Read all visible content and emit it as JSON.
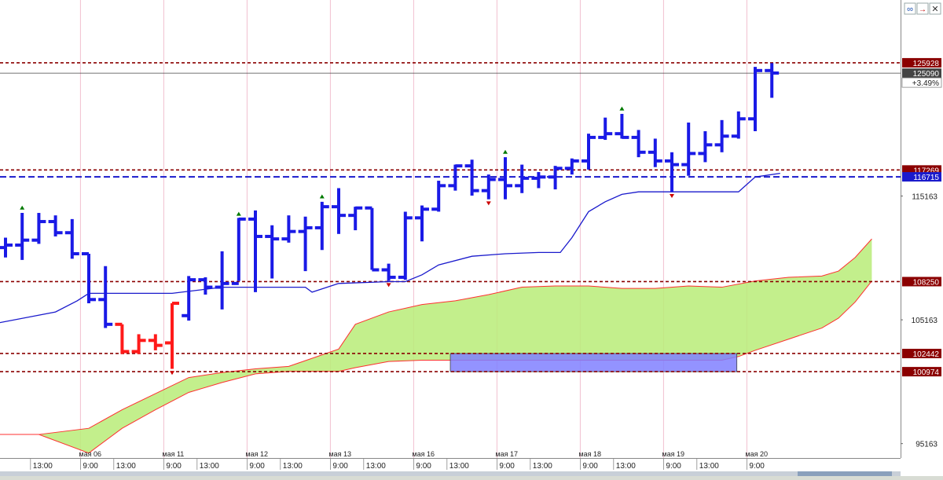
{
  "window": {
    "toolbar_icons": [
      "link-icon",
      "close-arrow-icon",
      "close-icon"
    ]
  },
  "chart_data": {
    "type": "line",
    "subtype": "ohlc-bars",
    "title": "",
    "xlabel": "",
    "ylabel": "",
    "ylim": [
      94000,
      131000
    ],
    "y_tick_labels": [
      {
        "value": 115163,
        "label": "115163"
      },
      {
        "value": 105163,
        "label": "105163"
      },
      {
        "value": 95163,
        "label": "95163"
      }
    ],
    "x_date_labels": [
      {
        "bar": 5,
        "label": "мая 06"
      },
      {
        "bar": 10,
        "label": "мая 11"
      },
      {
        "bar": 15,
        "label": "мая 12"
      },
      {
        "bar": 20,
        "label": "мая 13"
      },
      {
        "bar": 25,
        "label": "мая 16"
      },
      {
        "bar": 30,
        "label": "мая 17"
      },
      {
        "bar": 35,
        "label": "мая 18"
      },
      {
        "bar": 40,
        "label": "мая 19"
      },
      {
        "bar": 45,
        "label": "мая 20"
      }
    ],
    "x_time_labels": [
      {
        "bar": 2,
        "label": "13:00"
      },
      {
        "bar": 5,
        "label": "9:00"
      },
      {
        "bar": 7,
        "label": "13:00"
      },
      {
        "bar": 10,
        "label": "9:00"
      },
      {
        "bar": 12,
        "label": "13:00"
      },
      {
        "bar": 15,
        "label": "9:00"
      },
      {
        "bar": 17,
        "label": "13:00"
      },
      {
        "bar": 20,
        "label": "9:00"
      },
      {
        "bar": 22,
        "label": "13:00"
      },
      {
        "bar": 25,
        "label": "9:00"
      },
      {
        "bar": 27,
        "label": "13:00"
      },
      {
        "bar": 30,
        "label": "9:00"
      },
      {
        "bar": 32,
        "label": "13:00"
      },
      {
        "bar": 35,
        "label": "9:00"
      },
      {
        "bar": 37,
        "label": "13:00"
      },
      {
        "bar": 40,
        "label": "9:00"
      },
      {
        "bar": 42,
        "label": "13:00"
      },
      {
        "bar": 45,
        "label": "9:00"
      }
    ],
    "horizontal_levels": [
      {
        "value": 125928,
        "label": "125928",
        "color": "#8b0000",
        "style": "dashed"
      },
      {
        "value": 117269,
        "label": "117269",
        "color": "#8b0000",
        "style": "dashed"
      },
      {
        "value": 116715,
        "label": "116715",
        "color": "#1a1acc",
        "style": "dashed"
      },
      {
        "value": 108250,
        "label": "108250",
        "color": "#8b0000",
        "style": "dashed"
      },
      {
        "value": 102442,
        "label": "102442",
        "color": "#8b0000",
        "style": "dashed"
      },
      {
        "value": 100974,
        "label": "100974",
        "color": "#8b0000",
        "style": "dashed"
      }
    ],
    "last_price": {
      "value": 125090,
      "label": "125090",
      "change": "+3.49%"
    },
    "bar_colors": {
      "up": "#1a1ae6",
      "down": "#ff1a1a"
    },
    "bars": [
      {
        "x": 0,
        "o": 111000,
        "h": 111800,
        "l": 110200,
        "c": 111200,
        "color": "up"
      },
      {
        "x": 1,
        "o": 111200,
        "h": 113800,
        "l": 110000,
        "c": 111600,
        "color": "up"
      },
      {
        "x": 2,
        "o": 111600,
        "h": 113800,
        "l": 111300,
        "c": 113100,
        "color": "up"
      },
      {
        "x": 3,
        "o": 113100,
        "h": 113600,
        "l": 111900,
        "c": 112200,
        "color": "up"
      },
      {
        "x": 4,
        "o": 112200,
        "h": 113300,
        "l": 110100,
        "c": 110500,
        "color": "up"
      },
      {
        "x": 5,
        "o": 110500,
        "h": 110500,
        "l": 106500,
        "c": 106800,
        "color": "up"
      },
      {
        "x": 6,
        "o": 106800,
        "h": 109500,
        "l": 104500,
        "c": 104800,
        "color": "up"
      },
      {
        "x": 7,
        "o": 104800,
        "h": 104800,
        "l": 102400,
        "c": 102600,
        "color": "down"
      },
      {
        "x": 8,
        "o": 102600,
        "h": 104000,
        "l": 102400,
        "c": 103500,
        "color": "down"
      },
      {
        "x": 9,
        "o": 103500,
        "h": 104000,
        "l": 102700,
        "c": 103100,
        "color": "down"
      },
      {
        "x": 10,
        "o": 103300,
        "h": 106500,
        "l": 101200,
        "c": 106500,
        "color": "down"
      },
      {
        "x": 11,
        "o": 105500,
        "h": 108700,
        "l": 105100,
        "c": 108400,
        "color": "up"
      },
      {
        "x": 12,
        "o": 108400,
        "h": 108600,
        "l": 107200,
        "c": 107800,
        "color": "up"
      },
      {
        "x": 13,
        "o": 107800,
        "h": 110700,
        "l": 106000,
        "c": 108100,
        "color": "up"
      },
      {
        "x": 14,
        "o": 108100,
        "h": 113400,
        "l": 108300,
        "c": 113300,
        "color": "up"
      },
      {
        "x": 15,
        "o": 113300,
        "h": 114000,
        "l": 107400,
        "c": 111900,
        "color": "up"
      },
      {
        "x": 16,
        "o": 111900,
        "h": 112800,
        "l": 108500,
        "c": 111700,
        "color": "up"
      },
      {
        "x": 17,
        "o": 111700,
        "h": 113600,
        "l": 111400,
        "c": 112300,
        "color": "up"
      },
      {
        "x": 18,
        "o": 112300,
        "h": 113500,
        "l": 109100,
        "c": 112600,
        "color": "up"
      },
      {
        "x": 19,
        "o": 112600,
        "h": 114700,
        "l": 110800,
        "c": 114300,
        "color": "up"
      },
      {
        "x": 20,
        "o": 114300,
        "h": 115800,
        "l": 112100,
        "c": 113600,
        "color": "up"
      },
      {
        "x": 21,
        "o": 113600,
        "h": 114300,
        "l": 112400,
        "c": 114200,
        "color": "up"
      },
      {
        "x": 22,
        "o": 114200,
        "h": 114200,
        "l": 109200,
        "c": 109200,
        "color": "up"
      },
      {
        "x": 23,
        "o": 109200,
        "h": 109700,
        "l": 108300,
        "c": 108600,
        "color": "up"
      },
      {
        "x": 24,
        "o": 108600,
        "h": 113900,
        "l": 108400,
        "c": 113400,
        "color": "up"
      },
      {
        "x": 25,
        "o": 113400,
        "h": 114400,
        "l": 111500,
        "c": 114100,
        "color": "up"
      },
      {
        "x": 26,
        "o": 114100,
        "h": 116400,
        "l": 113900,
        "c": 116000,
        "color": "up"
      },
      {
        "x": 27,
        "o": 116000,
        "h": 117700,
        "l": 115600,
        "c": 117600,
        "color": "up"
      },
      {
        "x": 28,
        "o": 117600,
        "h": 118100,
        "l": 115200,
        "c": 115600,
        "color": "up"
      },
      {
        "x": 29,
        "o": 115600,
        "h": 116900,
        "l": 114900,
        "c": 116500,
        "color": "up"
      },
      {
        "x": 30,
        "o": 116500,
        "h": 118300,
        "l": 114900,
        "c": 116000,
        "color": "up"
      },
      {
        "x": 31,
        "o": 116000,
        "h": 117700,
        "l": 115400,
        "c": 116600,
        "color": "up"
      },
      {
        "x": 32,
        "o": 116600,
        "h": 117100,
        "l": 115800,
        "c": 116700,
        "color": "up"
      },
      {
        "x": 33,
        "o": 116700,
        "h": 117600,
        "l": 115700,
        "c": 117400,
        "color": "up"
      },
      {
        "x": 34,
        "o": 117400,
        "h": 118200,
        "l": 116900,
        "c": 118000,
        "color": "up"
      },
      {
        "x": 35,
        "o": 118000,
        "h": 120200,
        "l": 117300,
        "c": 119900,
        "color": "up"
      },
      {
        "x": 36,
        "o": 119900,
        "h": 121500,
        "l": 119700,
        "c": 120200,
        "color": "up"
      },
      {
        "x": 37,
        "o": 120200,
        "h": 121800,
        "l": 119800,
        "c": 119900,
        "color": "up"
      },
      {
        "x": 38,
        "o": 119900,
        "h": 120500,
        "l": 118300,
        "c": 118700,
        "color": "up"
      },
      {
        "x": 39,
        "o": 118700,
        "h": 119800,
        "l": 117500,
        "c": 118000,
        "color": "up"
      },
      {
        "x": 40,
        "o": 118000,
        "h": 118700,
        "l": 115500,
        "c": 117700,
        "color": "up"
      },
      {
        "x": 41,
        "o": 117700,
        "h": 121100,
        "l": 116800,
        "c": 118600,
        "color": "up"
      },
      {
        "x": 42,
        "o": 118600,
        "h": 120400,
        "l": 117900,
        "c": 119300,
        "color": "up"
      },
      {
        "x": 43,
        "o": 119300,
        "h": 121300,
        "l": 118700,
        "c": 120000,
        "color": "up"
      },
      {
        "x": 44,
        "o": 120000,
        "h": 122000,
        "l": 119800,
        "c": 121400,
        "color": "up"
      },
      {
        "x": 45,
        "o": 121400,
        "h": 125600,
        "l": 120400,
        "c": 125300,
        "color": "up"
      },
      {
        "x": 46,
        "o": 125300,
        "h": 125900,
        "l": 123100,
        "c": 125100,
        "color": "up"
      }
    ],
    "fractal_markers": [
      {
        "x": 1,
        "value": 114200,
        "dir": "up",
        "color": "#007a00"
      },
      {
        "x": 10,
        "value": 100900,
        "dir": "down",
        "color": "#cc0000"
      },
      {
        "x": 14,
        "value": 113700,
        "dir": "up",
        "color": "#007a00"
      },
      {
        "x": 19,
        "value": 115100,
        "dir": "up",
        "color": "#007a00"
      },
      {
        "x": 23,
        "value": 108000,
        "dir": "down",
        "color": "#cc0000"
      },
      {
        "x": 29,
        "value": 114600,
        "dir": "down",
        "color": "#cc0000"
      },
      {
        "x": 30,
        "value": 118700,
        "dir": "up",
        "color": "#007a00"
      },
      {
        "x": 37,
        "value": 122200,
        "dir": "up",
        "color": "#007a00"
      },
      {
        "x": 40,
        "value": 115200,
        "dir": "down",
        "color": "#cc0000"
      }
    ],
    "series": [
      {
        "color": "#1a1acc",
        "points": [
          [
            -0.5,
            104900
          ],
          [
            3,
            105800
          ],
          [
            4.3,
            106700
          ],
          [
            5,
            107300
          ],
          [
            8,
            107300
          ],
          [
            10,
            107300
          ],
          [
            13,
            107800
          ],
          [
            18,
            107800
          ],
          [
            18.4,
            107400
          ],
          [
            20,
            108100
          ],
          [
            23,
            108250
          ],
          [
            24,
            108250
          ],
          [
            25,
            108800
          ],
          [
            26,
            109600
          ],
          [
            28,
            110300
          ],
          [
            30,
            110500
          ],
          [
            32,
            110600
          ],
          [
            33.3,
            110600
          ],
          [
            34,
            111800
          ],
          [
            35,
            113900
          ],
          [
            36,
            114700
          ],
          [
            37,
            115300
          ],
          [
            38,
            115500
          ],
          [
            40,
            115500
          ],
          [
            42,
            115500
          ],
          [
            43,
            115500
          ],
          [
            44,
            115500
          ],
          [
            45,
            116700
          ],
          [
            46.5,
            117000
          ]
        ]
      }
    ],
    "cloud": {
      "fill": "#b8ec78",
      "edge_color": "#ff3030",
      "upper": [
        [
          -0.5,
          95900
        ],
        [
          2,
          95900
        ],
        [
          5,
          96400
        ],
        [
          7,
          97900
        ],
        [
          9,
          99200
        ],
        [
          11,
          100500
        ],
        [
          13,
          100900
        ],
        [
          15,
          101200
        ],
        [
          17,
          101400
        ],
        [
          20,
          102800
        ],
        [
          21,
          104800
        ],
        [
          23,
          105800
        ],
        [
          25,
          106400
        ],
        [
          27,
          106700
        ],
        [
          29,
          107200
        ],
        [
          31,
          107800
        ],
        [
          33,
          107900
        ],
        [
          35,
          107900
        ],
        [
          37,
          107700
        ],
        [
          39,
          107700
        ],
        [
          41,
          107900
        ],
        [
          43,
          107800
        ],
        [
          45,
          108300
        ],
        [
          47,
          108600
        ],
        [
          49,
          108700
        ],
        [
          50,
          109100
        ],
        [
          51,
          110200
        ],
        [
          52,
          111700
        ]
      ],
      "lower": [
        [
          -0.5,
          95900
        ],
        [
          2,
          95900
        ],
        [
          5,
          94400
        ],
        [
          7,
          96400
        ],
        [
          9,
          97900
        ],
        [
          11,
          99300
        ],
        [
          13,
          100100
        ],
        [
          15,
          100800
        ],
        [
          17,
          101000
        ],
        [
          20,
          101000
        ],
        [
          21,
          101300
        ],
        [
          23,
          101800
        ],
        [
          25,
          101900
        ],
        [
          27,
          101900
        ],
        [
          29,
          101900
        ],
        [
          31,
          101900
        ],
        [
          33,
          101900
        ],
        [
          35,
          101900
        ],
        [
          37,
          101900
        ],
        [
          39,
          101900
        ],
        [
          41,
          101900
        ],
        [
          43,
          101900
        ],
        [
          44,
          102200
        ],
        [
          45,
          102700
        ],
        [
          47,
          103600
        ],
        [
          49,
          104500
        ],
        [
          50,
          105300
        ],
        [
          51,
          106600
        ],
        [
          52,
          108300
        ]
      ]
    },
    "zone": {
      "x_start": 26.7,
      "x_end": 43.9,
      "top": 102442,
      "bottom": 100974,
      "fill": "#8080ff"
    },
    "grid": true,
    "legend": "none"
  }
}
